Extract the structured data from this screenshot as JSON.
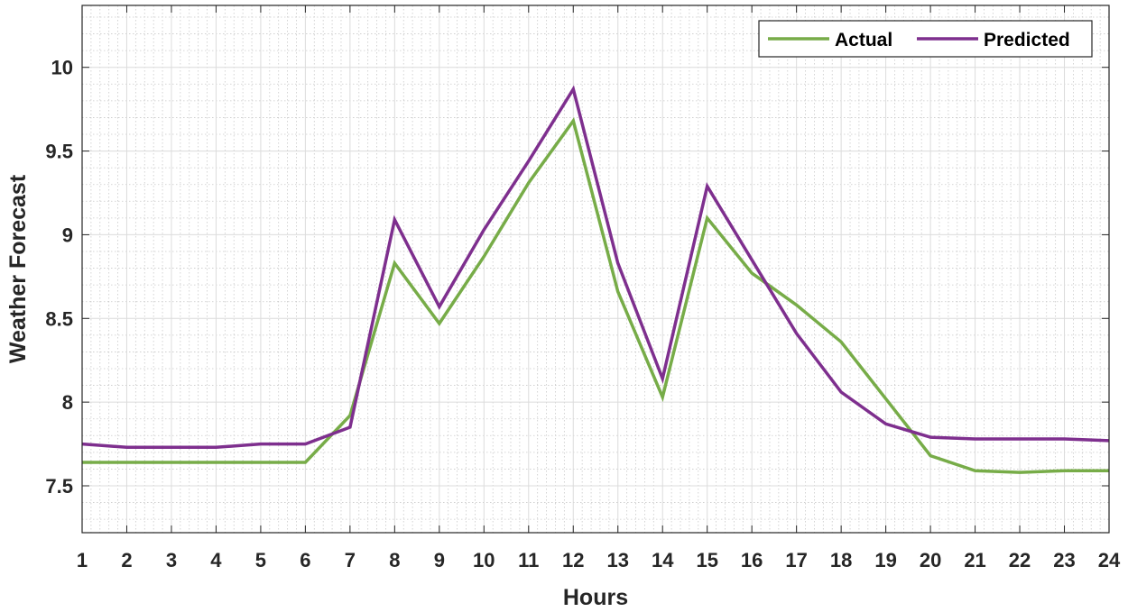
{
  "chart_data": {
    "type": "line",
    "title": "",
    "xlabel": "Hours",
    "ylabel": "Weather Forecast",
    "x": [
      1,
      2,
      3,
      4,
      5,
      6,
      7,
      8,
      9,
      10,
      11,
      12,
      13,
      14,
      15,
      16,
      17,
      18,
      19,
      20,
      21,
      22,
      23,
      24
    ],
    "xlim": [
      1,
      24
    ],
    "ylim": [
      7.22,
      10.37
    ],
    "x_ticks": [
      "1",
      "2",
      "3",
      "4",
      "5",
      "6",
      "7",
      "8",
      "9",
      "10",
      "11",
      "12",
      "13",
      "14",
      "15",
      "16",
      "17",
      "18",
      "19",
      "20",
      "21",
      "22",
      "23",
      "24"
    ],
    "y_ticks": [
      "7.5",
      "8",
      "8.5",
      "9",
      "9.5",
      "10"
    ],
    "grid": "on (major and minor)",
    "legend_position": "top-right",
    "series": [
      {
        "name": "Actual",
        "color": "#77ac48",
        "values": [
          7.64,
          7.64,
          7.64,
          7.64,
          7.64,
          7.64,
          7.92,
          8.83,
          8.47,
          8.87,
          9.31,
          9.68,
          8.66,
          8.03,
          9.1,
          8.77,
          8.58,
          8.36,
          8.02,
          7.68,
          7.59,
          7.58,
          7.59,
          7.59
        ]
      },
      {
        "name": "Predicted",
        "color": "#7e2f8e",
        "values": [
          7.75,
          7.73,
          7.73,
          7.73,
          7.75,
          7.75,
          7.85,
          9.09,
          8.57,
          9.03,
          9.44,
          9.87,
          8.83,
          8.14,
          9.29,
          8.85,
          8.41,
          8.06,
          7.87,
          7.79,
          7.78,
          7.78,
          7.78,
          7.77
        ]
      }
    ]
  }
}
